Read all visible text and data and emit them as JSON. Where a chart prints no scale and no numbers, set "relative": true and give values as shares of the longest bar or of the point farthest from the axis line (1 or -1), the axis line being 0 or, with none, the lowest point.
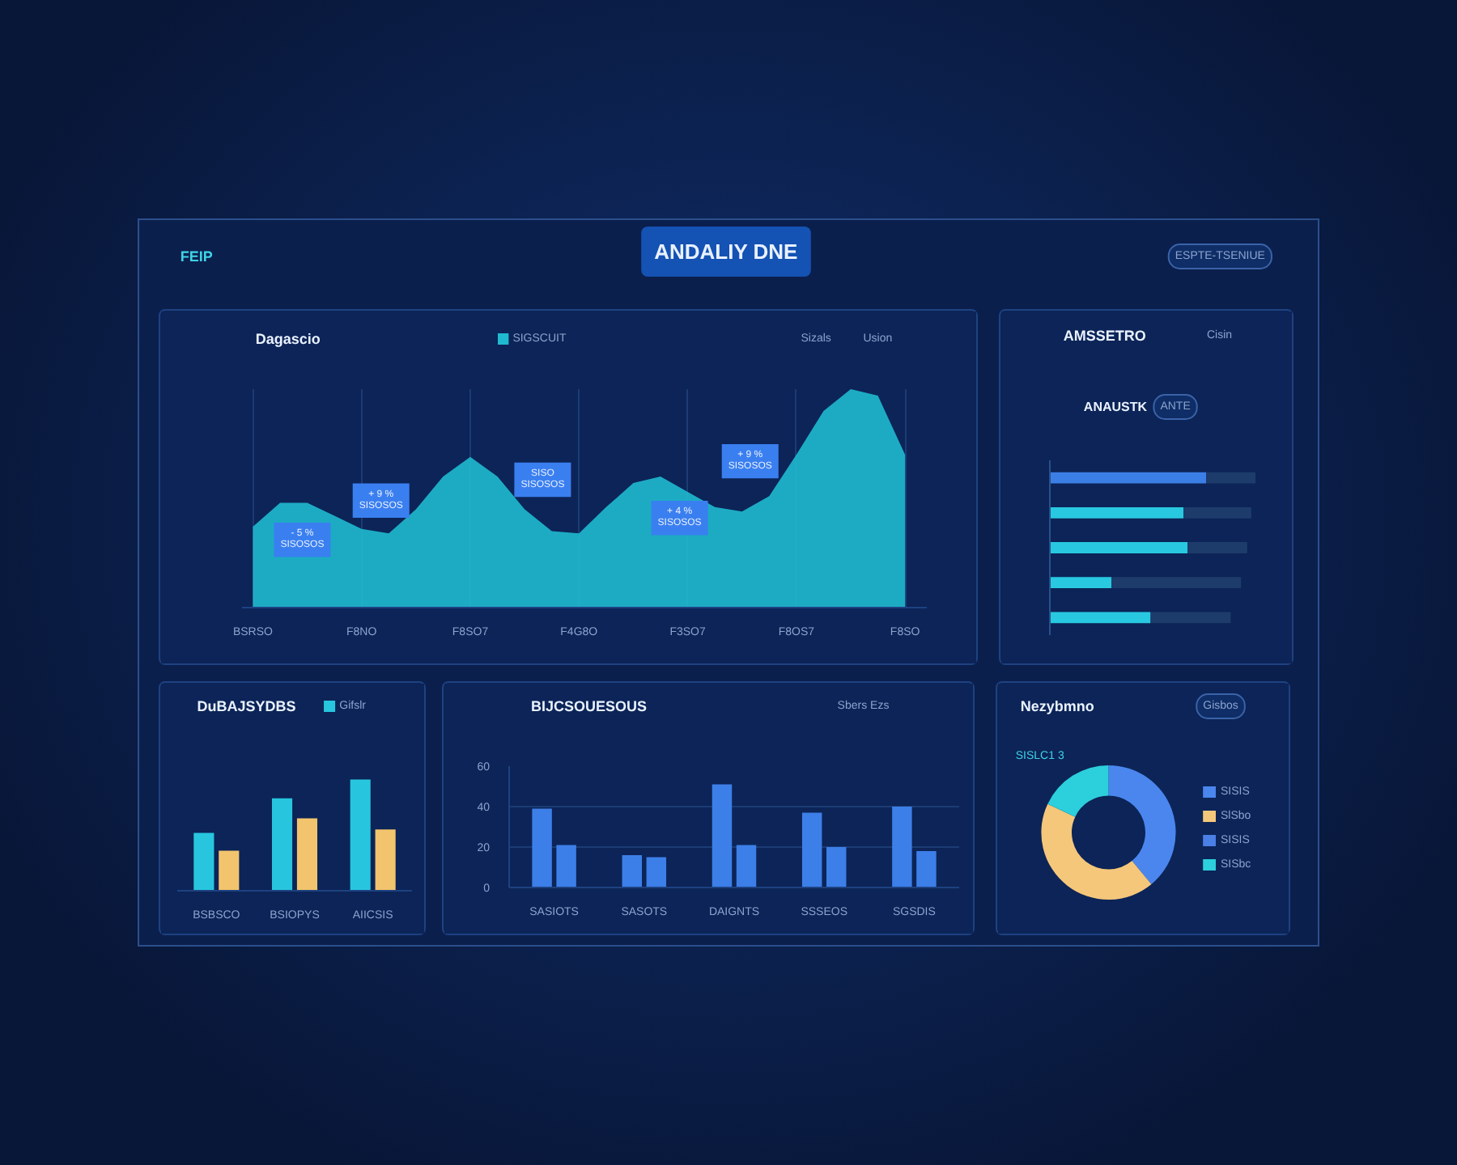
{
  "chart_data": [
    {
      "type": "other",
      "title": "ANDALIY DNE",
      "annotations": [
        "FEIP",
        "ESPTE-TSENIUE"
      ]
    },
    {
      "type": "area",
      "title": "Dagascio",
      "relative": true,
      "legend": "top",
      "grid": "x",
      "categories": [
        "BSRSO",
        null,
        null,
        null,
        "F8NO",
        null,
        null,
        null,
        "F8SO7",
        null,
        null,
        null,
        "F4G8O",
        null,
        null,
        null,
        "F3SO7",
        null,
        null,
        null,
        "F8OS7",
        null,
        null,
        null,
        "F8SO"
      ],
      "series": [
        {
          "name": "SIGSCUIT",
          "color": "#1fbad0",
          "values": [
            0.37,
            0.48,
            0.48,
            0.42,
            0.36,
            0.34,
            0.45,
            0.6,
            0.69,
            0.6,
            0.45,
            0.35,
            0.34,
            0.46,
            0.57,
            0.6,
            0.53,
            0.46,
            0.44,
            0.51,
            0.7,
            0.9,
            1.0,
            0.97,
            0.7
          ]
        }
      ],
      "annotations": [
        "Sizals",
        "Usion",
        "- 5 %\nSISOSOS",
        "+ 9 %\nSISOSOS",
        "SISO\nSISOSOS",
        "+ 4 %\nSISOSOS",
        "+ 9 %\nSISOSOS"
      ]
    },
    {
      "type": "bar",
      "title": "AMSSETRO",
      "orientation": "horizontal",
      "stacked": true,
      "relative": true,
      "categories": [
        null,
        null,
        null,
        null,
        null
      ],
      "series": [
        {
          "colors": [
            "#3b7fe6",
            "#28c9e0",
            "#28c9e0",
            "#28c9e0",
            "#28c9e0"
          ],
          "values": [
            0.76,
            0.65,
            0.67,
            0.3,
            0.49
          ]
        },
        {
          "color": "#1d3b6b",
          "values": [
            0.24,
            0.33,
            0.29,
            0.63,
            0.39
          ]
        }
      ],
      "annotations": [
        "Cisin",
        "ANAUSTK",
        "ANTE"
      ]
    },
    {
      "type": "bar",
      "title": "DuBAJSYDBS",
      "relative": true,
      "legend": "top right",
      "categories": [
        "BSBSCO",
        "BSIOPYS",
        "AIICSIS"
      ],
      "series": [
        {
          "name": "Gifslr",
          "color": "#27c6de",
          "values": [
            0.52,
            0.83,
            1.0
          ]
        },
        {
          "color": "#f2c46d",
          "values": [
            0.36,
            0.65,
            0.55
          ]
        }
      ]
    },
    {
      "type": "bar",
      "title": "BIJCSOUESOUS",
      "categories": [
        "SASIOTS",
        "SASOTS",
        "DAIGNTS",
        "SSSEOS",
        "SGSDIS"
      ],
      "ylim": [
        0,
        60
      ],
      "yticks": [
        0,
        20,
        40,
        60
      ],
      "grid": "y",
      "series": [
        {
          "color": "#3d7fe8",
          "values": [
            39,
            16,
            51,
            37,
            40
          ]
        },
        {
          "color": "#3d7fe8",
          "values": [
            21,
            15,
            21,
            20,
            18
          ]
        }
      ],
      "annotations": [
        "Sbers  Ezs"
      ]
    },
    {
      "type": "donut",
      "title": "Nezybmno",
      "subtitle": "SISLC1 3",
      "legend": "right",
      "categories": [
        "SISIS",
        "SlSbo",
        "SISIS",
        "SISbc"
      ],
      "values": [
        39,
        43,
        0,
        18
      ],
      "colors": [
        "#4a86ee",
        "#f5c77a",
        "#4a7fe6",
        "#2ccfdc"
      ],
      "annotations": [
        "Gisbos"
      ]
    }
  ]
}
